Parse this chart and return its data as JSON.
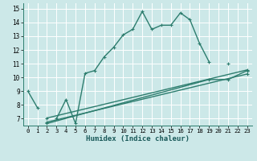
{
  "xlabel": "Humidex (Indice chaleur)",
  "bg_color": "#cce8e8",
  "grid_color": "#ffffff",
  "line_color": "#2d7d6e",
  "xlim": [
    -0.5,
    23.5
  ],
  "ylim": [
    6.5,
    15.4
  ],
  "xticks": [
    0,
    1,
    2,
    3,
    4,
    5,
    6,
    7,
    8,
    9,
    10,
    11,
    12,
    13,
    14,
    15,
    16,
    17,
    18,
    19,
    20,
    21,
    22,
    23
  ],
  "yticks": [
    7,
    8,
    9,
    10,
    11,
    12,
    13,
    14,
    15
  ],
  "main_line_x": [
    0,
    1,
    2,
    3,
    4,
    5,
    6,
    7,
    8,
    9,
    10,
    11,
    12,
    13,
    14,
    15,
    16,
    17,
    18,
    19,
    20,
    21,
    22,
    23
  ],
  "main_line_y": [
    9.0,
    7.8,
    null,
    7.0,
    8.4,
    6.65,
    10.3,
    10.5,
    11.5,
    12.2,
    13.1,
    13.5,
    14.8,
    13.5,
    13.8,
    13.8,
    14.7,
    14.2,
    12.5,
    11.15,
    null,
    11.0,
    null,
    10.5
  ],
  "line1_x": [
    2,
    23
  ],
  "line1_y": [
    7.05,
    10.55
  ],
  "line2_x": [
    2,
    23
  ],
  "line2_y": [
    6.75,
    10.25
  ],
  "line3_x": [
    2,
    19,
    21,
    23
  ],
  "line3_y": [
    6.65,
    9.85,
    9.85,
    10.5
  ]
}
